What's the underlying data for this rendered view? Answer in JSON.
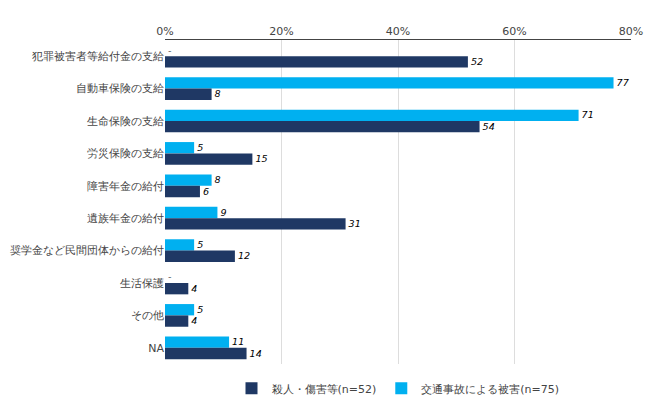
{
  "chart_data": {
    "type": "bar",
    "orientation": "horizontal",
    "categories": [
      "犯罪被害者等給付金の支給",
      "自動車保険の支給",
      "生命保険の支給",
      "労災保険の支給",
      "障害年金の給付",
      "遺族年金の給付",
      "奨学金など民間団体からの給付",
      "生活保護",
      "その他",
      "NA"
    ],
    "series": [
      {
        "name": "殺人・傷害等(n=52)",
        "color": "#1F3864",
        "values": [
          52,
          8,
          54,
          15,
          6,
          31,
          12,
          4,
          4,
          14
        ],
        "value_labels": [
          "52",
          "8",
          "54",
          "15",
          "6",
          "31",
          "12",
          "4",
          "4",
          "14"
        ]
      },
      {
        "name": "交通事故による被害(n=75)",
        "color": "#00B0F0",
        "values": [
          0,
          77,
          71,
          5,
          8,
          9,
          5,
          0,
          5,
          11
        ],
        "value_labels": [
          "-",
          "77",
          "71",
          "5",
          "8",
          "9",
          "5",
          "-",
          "5",
          "11"
        ]
      }
    ],
    "xlim": [
      0,
      80
    ],
    "xticks": [
      {
        "value": 0,
        "label": "0%"
      },
      {
        "value": 20,
        "label": "20%"
      },
      {
        "value": 40,
        "label": "40%"
      },
      {
        "value": 60,
        "label": "60%"
      },
      {
        "value": 80,
        "label": "80%"
      }
    ],
    "grid": true,
    "legend": "bottom",
    "data_labels": true
  }
}
